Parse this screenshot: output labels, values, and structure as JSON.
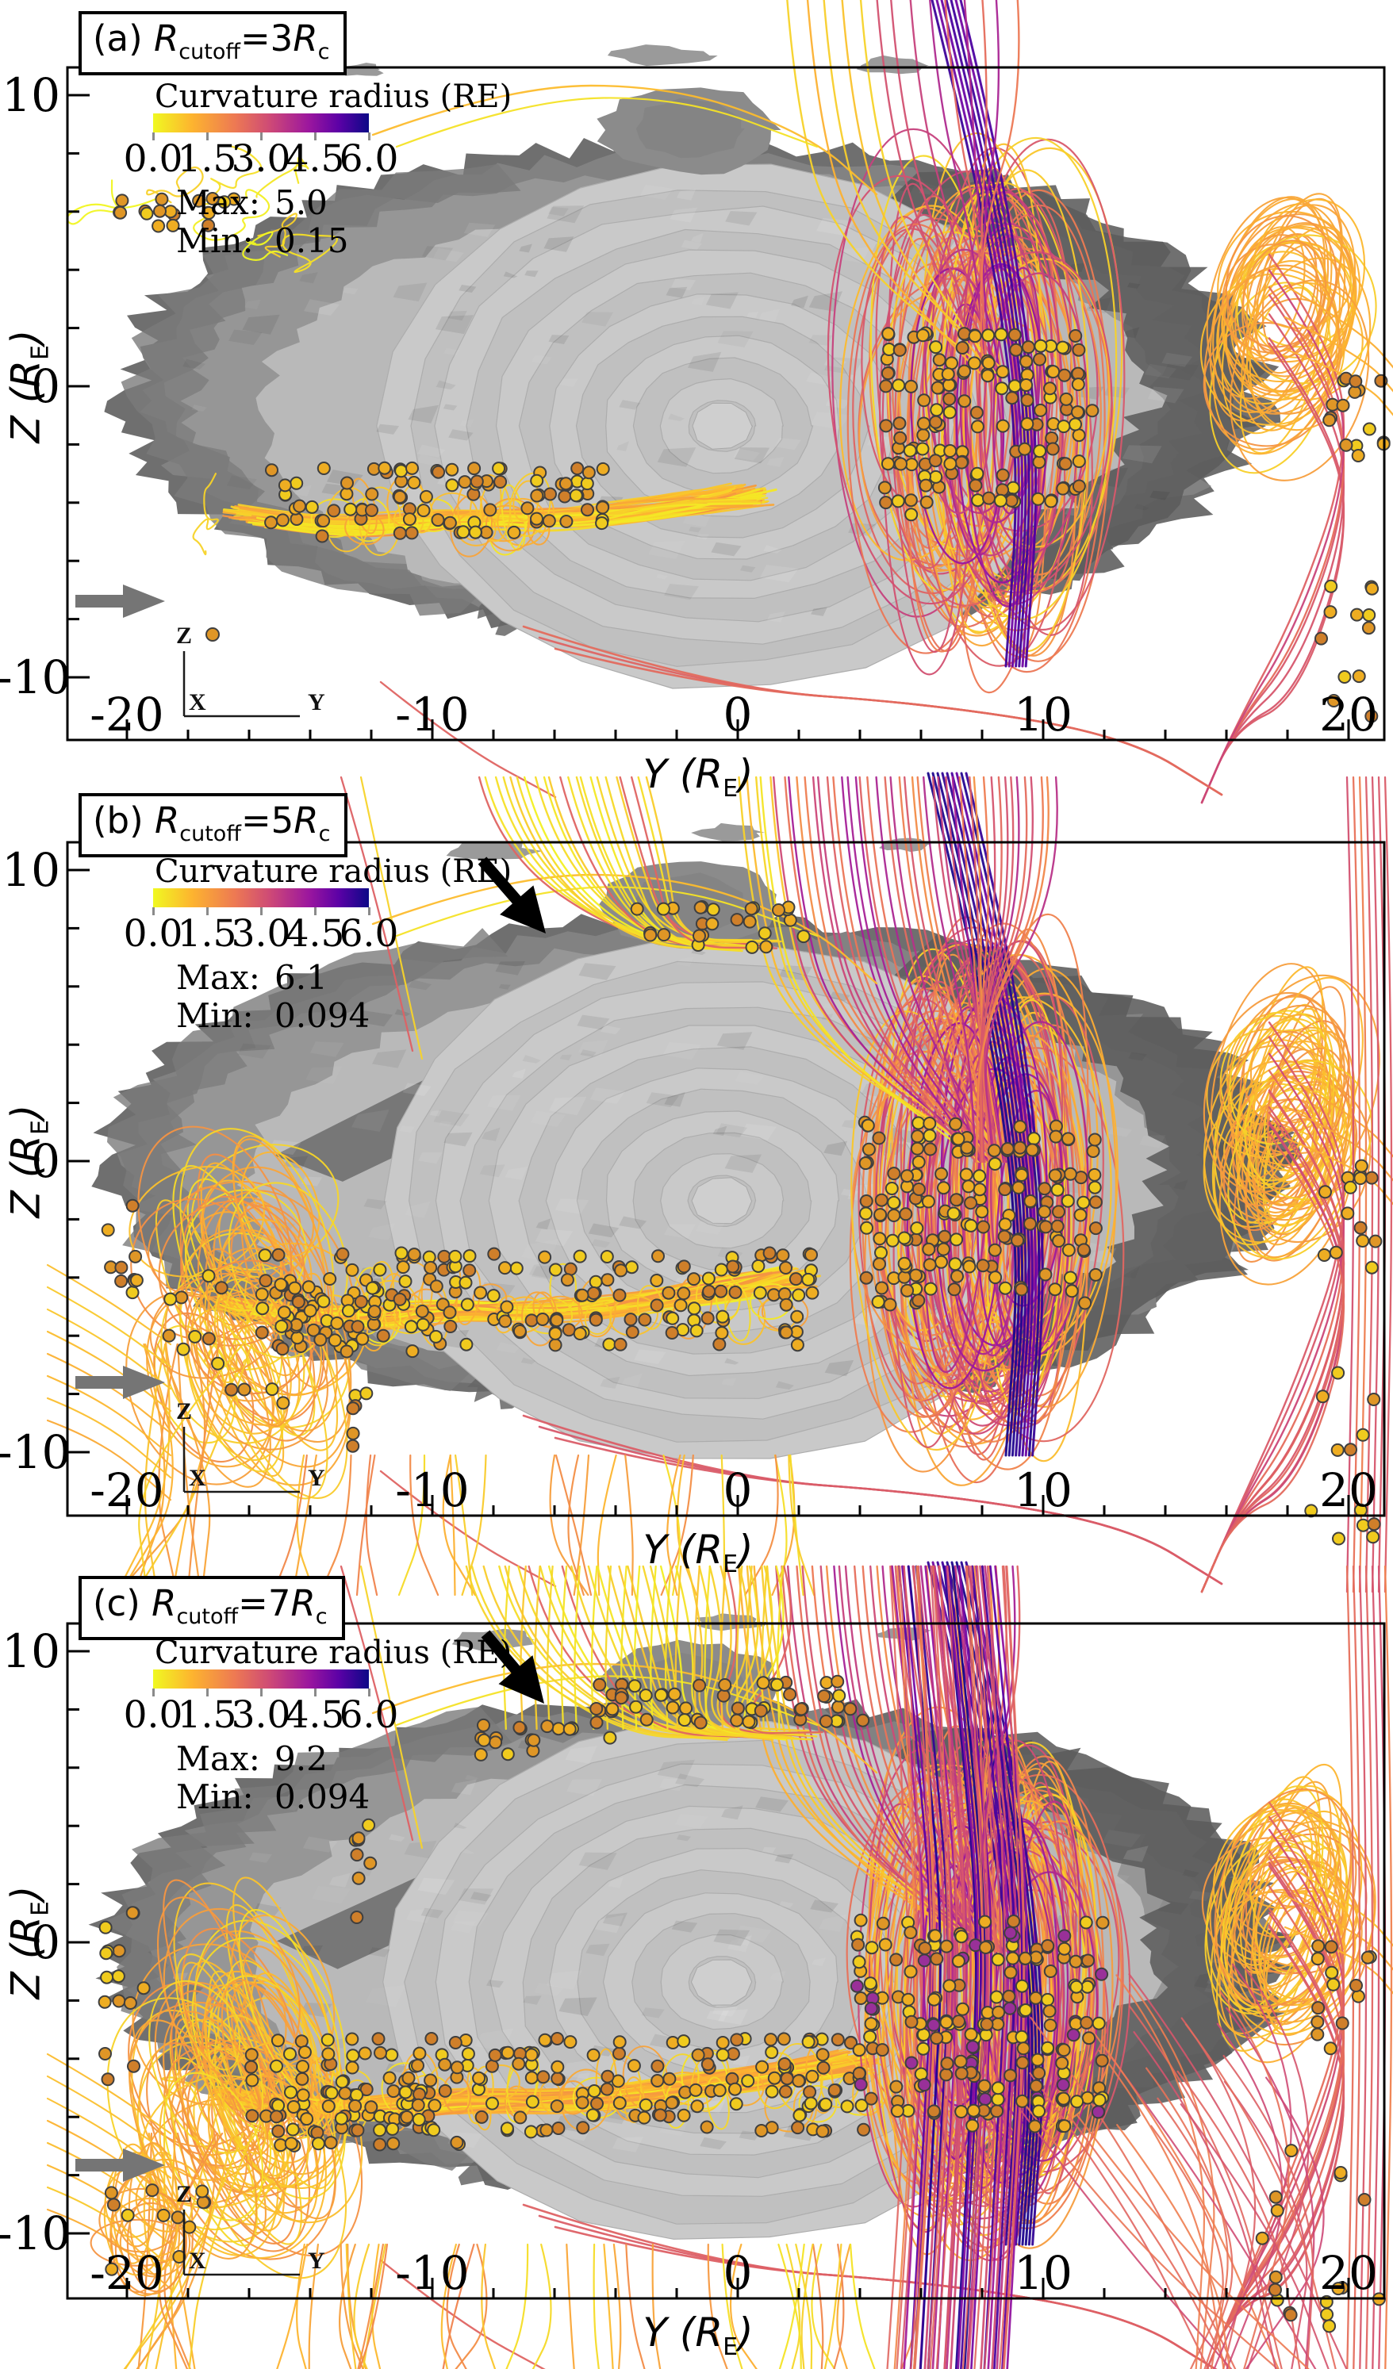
{
  "figure": {
    "background": "#ffffff",
    "surface_gray": "#8f8f8f",
    "marker_color": "#eead22",
    "gray_arrow_color": "#757575",
    "colorbar_gradient": [
      "#f0f921",
      "#fdb42f",
      "#ed7953",
      "#cc4778",
      "#9c179e",
      "#5c01a6",
      "#0d0887"
    ]
  },
  "panels": [
    {
      "id": "a",
      "title": {
        "prefix": "(a) ",
        "r": "R",
        "sub": "cutoff",
        "eq": "=",
        "value": "3",
        "r2": "R",
        "sub2": "c"
      },
      "colorbar": {
        "title": "Curvature radius (RE)",
        "ticks": [
          "0.0",
          "1.5",
          "3.0",
          "4.5",
          "6.0"
        ]
      },
      "stats": {
        "max_label": "Max:",
        "max": "5.0",
        "min_label": "Min:",
        "min": "0.15"
      },
      "x_axis": {
        "label_main": "Y (R",
        "label_sub": "E",
        "label_close": ")",
        "ticks": [
          "-20",
          "-10",
          "0",
          "10",
          "20"
        ]
      },
      "y_axis": {
        "label_main": "Z (R",
        "label_sub": "E",
        "label_close": ")",
        "ticks": [
          "10",
          "0",
          "-10"
        ]
      },
      "triad": {
        "z": "Z",
        "x": "X",
        "y": "Y"
      },
      "annotations": {
        "gray_arrow": true,
        "black_arrow": false
      }
    },
    {
      "id": "b",
      "title": {
        "prefix": "(b) ",
        "r": "R",
        "sub": "cutoff",
        "eq": "=",
        "value": "5",
        "r2": "R",
        "sub2": "c"
      },
      "colorbar": {
        "title": "Curvature radius (RE)",
        "ticks": [
          "0.0",
          "1.5",
          "3.0",
          "4.5",
          "6.0"
        ]
      },
      "stats": {
        "max_label": "Max:",
        "max": "6.1",
        "min_label": "Min:",
        "min": "0.094"
      },
      "x_axis": {
        "label_main": "Y (R",
        "label_sub": "E",
        "label_close": ")",
        "ticks": [
          "-20",
          "-10",
          "0",
          "10",
          "20"
        ]
      },
      "y_axis": {
        "label_main": "Z (R",
        "label_sub": "E",
        "label_close": ")",
        "ticks": [
          "10",
          "0",
          "-10"
        ]
      },
      "triad": {
        "z": "Z",
        "x": "X",
        "y": "Y"
      },
      "annotations": {
        "gray_arrow": true,
        "black_arrow": true
      }
    },
    {
      "id": "c",
      "title": {
        "prefix": "(c) ",
        "r": "R",
        "sub": "cutoff",
        "eq": "=",
        "value": "7",
        "r2": "R",
        "sub2": "c"
      },
      "colorbar": {
        "title": "Curvature radius (RE)",
        "ticks": [
          "0.0",
          "1.5",
          "3.0",
          "4.5",
          "6.0"
        ]
      },
      "stats": {
        "max_label": "Max:",
        "max": "9.2",
        "min_label": "Min:",
        "min": "0.094"
      },
      "x_axis": {
        "label_main": "Y (R",
        "label_sub": "E",
        "label_close": ")",
        "ticks": [
          "-20",
          "-10",
          "0",
          "10",
          "20"
        ]
      },
      "y_axis": {
        "label_main": "Z (R",
        "label_sub": "E",
        "label_close": ")",
        "ticks": [
          "10",
          "0",
          "-10"
        ]
      },
      "triad": {
        "z": "Z",
        "x": "X",
        "y": "Y"
      },
      "annotations": {
        "gray_arrow": true,
        "black_arrow": true
      }
    }
  ],
  "chart_data": [
    {
      "type": "scatter",
      "title": "(a) Rcutoff = 3Rc",
      "colorbar": {
        "title": "Curvature radius (RE)",
        "range": [
          0.0,
          6.0
        ],
        "ticks": [
          0.0,
          1.5,
          3.0,
          4.5,
          6.0
        ]
      },
      "max_curvature_radius": 5.0,
      "min_curvature_radius": 0.15,
      "xlabel": "Y (RE)",
      "xlim": [
        -22,
        21
      ],
      "xticks": [
        -20,
        -10,
        0,
        10,
        20
      ],
      "ylabel": "Z (RE)",
      "ylim": [
        -12,
        11
      ],
      "yticks": [
        -10,
        0,
        10
      ],
      "legend_position": "upper-left-inside",
      "grid": false
    },
    {
      "type": "scatter",
      "title": "(b) Rcutoff = 5Rc",
      "colorbar": {
        "title": "Curvature radius (RE)",
        "range": [
          0.0,
          6.0
        ],
        "ticks": [
          0.0,
          1.5,
          3.0,
          4.5,
          6.0
        ]
      },
      "max_curvature_radius": 6.1,
      "min_curvature_radius": 0.094,
      "xlabel": "Y (RE)",
      "xlim": [
        -22,
        21
      ],
      "xticks": [
        -20,
        -10,
        0,
        10,
        20
      ],
      "ylabel": "Z (RE)",
      "ylim": [
        -12,
        11
      ],
      "yticks": [
        -10,
        0,
        10
      ],
      "legend_position": "upper-left-inside",
      "grid": false
    },
    {
      "type": "scatter",
      "title": "(c) Rcutoff = 7Rc",
      "colorbar": {
        "title": "Curvature radius (RE)",
        "range": [
          0.0,
          6.0
        ],
        "ticks": [
          0.0,
          1.5,
          3.0,
          4.5,
          6.0
        ]
      },
      "max_curvature_radius": 9.2,
      "min_curvature_radius": 0.094,
      "xlabel": "Y (RE)",
      "xlim": [
        -22,
        21
      ],
      "xticks": [
        -20,
        -10,
        0,
        10,
        20
      ],
      "ylabel": "Z (RE)",
      "ylim": [
        -12,
        11
      ],
      "yticks": [
        -10,
        0,
        10
      ],
      "legend_position": "upper-left-inside",
      "grid": false
    }
  ]
}
